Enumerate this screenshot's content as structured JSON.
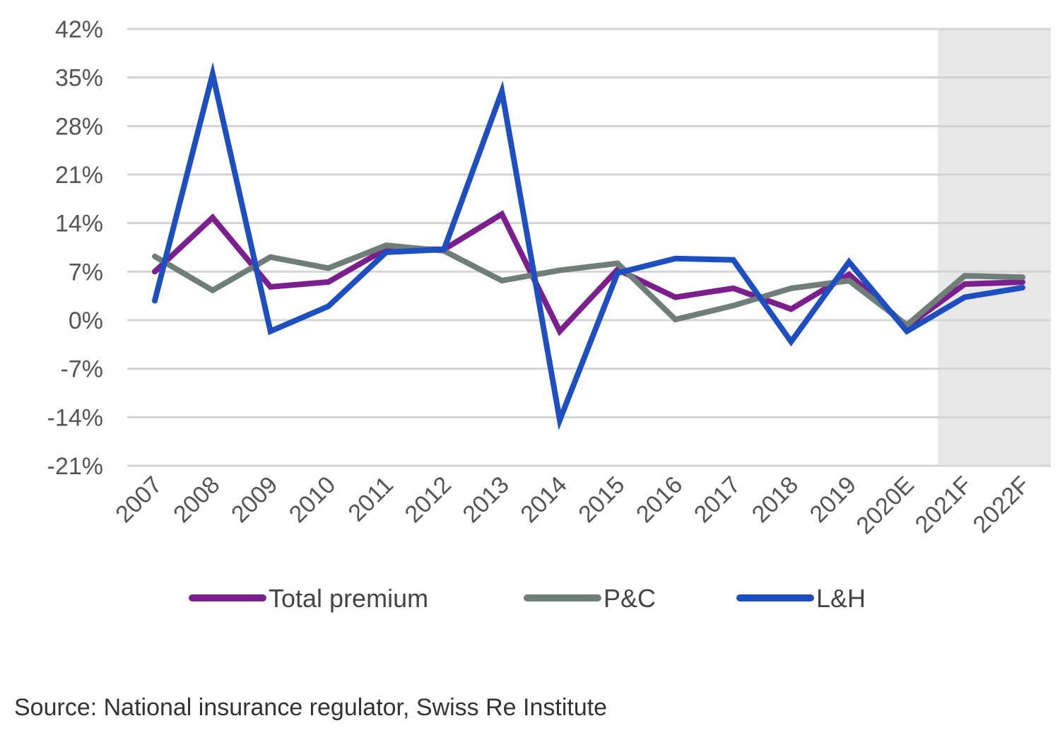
{
  "chart_data": {
    "type": "line",
    "title": "",
    "xlabel": "",
    "ylabel": "",
    "categories": [
      "2007",
      "2008",
      "2009",
      "2010",
      "2011",
      "2012",
      "2013",
      "2014",
      "2015",
      "2016",
      "2017",
      "2018",
      "2019",
      "2020E",
      "2021F",
      "2022F"
    ],
    "y_ticks": [
      "42%",
      "35%",
      "28%",
      "21%",
      "14%",
      "7%",
      "0%",
      "-7%",
      "-14%",
      "-21%"
    ],
    "ylim": [
      -21,
      42
    ],
    "y_unit": "%",
    "grid": true,
    "legend_position": "bottom",
    "forecast_shading": {
      "from_category": "2021F",
      "to_category": "2022F",
      "color": "#e8e8e8"
    },
    "series": [
      {
        "name": "Total premium",
        "color": "#7b1f8e",
        "values": [
          7.0,
          14.8,
          4.8,
          5.5,
          10.3,
          10.2,
          15.3,
          -1.6,
          7.3,
          3.3,
          4.6,
          1.6,
          6.6,
          -0.9,
          5.2,
          5.5
        ]
      },
      {
        "name": "P&C",
        "color": "#6f7f78",
        "values": [
          9.2,
          4.3,
          9.1,
          7.5,
          10.8,
          10.0,
          5.7,
          7.2,
          8.2,
          0.1,
          2.1,
          4.6,
          5.7,
          -0.7,
          6.4,
          6.2
        ]
      },
      {
        "name": "L&H",
        "color": "#1e4fc0",
        "values": [
          2.8,
          35.5,
          -1.6,
          2.0,
          9.8,
          10.2,
          33.0,
          -14.4,
          6.8,
          8.9,
          8.7,
          -3.1,
          8.4,
          -1.6,
          3.3,
          4.7
        ]
      }
    ]
  },
  "source": "Source: National insurance regulator, Swiss Re Institute"
}
